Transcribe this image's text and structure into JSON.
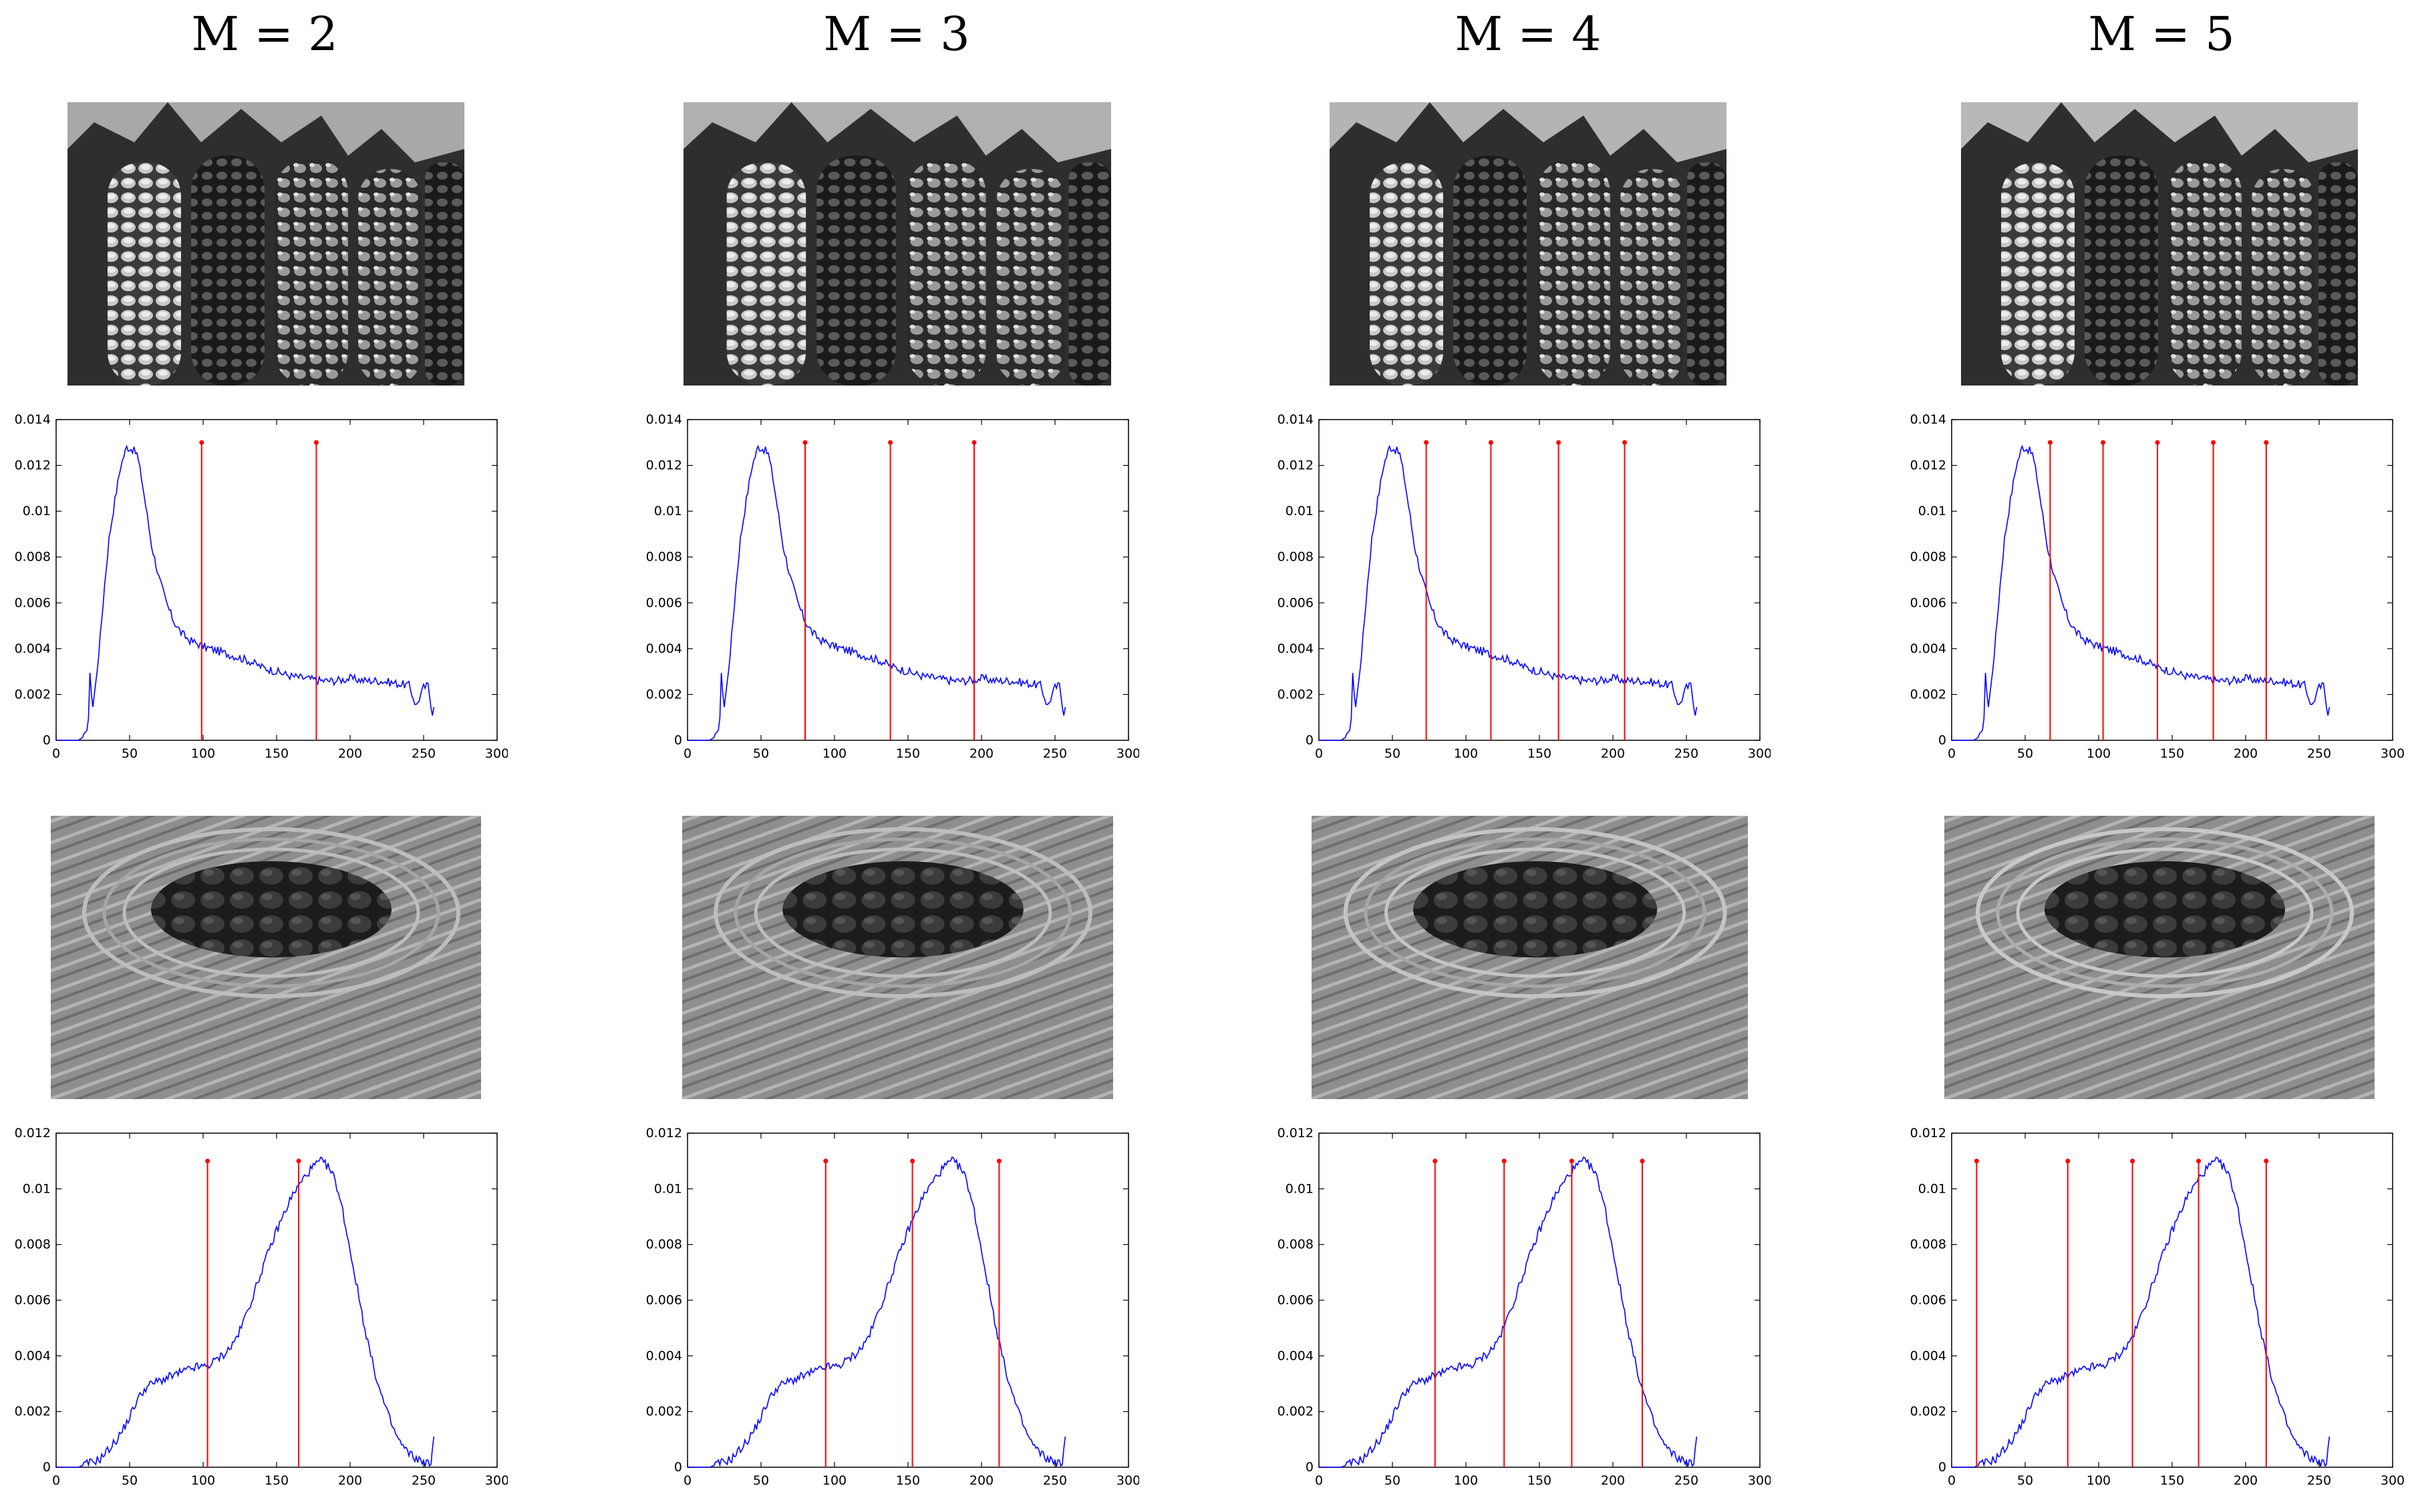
{
  "titles": [
    "M = 2",
    "M = 3",
    "M = 4",
    "M = 5"
  ],
  "images": {
    "row1": "corn-cobs-quantized",
    "row2": "zen-garden-quantized"
  },
  "colors": {
    "histogram": "#0000ff",
    "thresholds": "#ff0000",
    "axes": "#000000"
  },
  "chart_data": [
    {
      "type": "line",
      "title": "M = 2",
      "histogram": "corn",
      "xlim": [
        0,
        300
      ],
      "ylim": [
        0,
        0.014
      ],
      "xticks": [
        0,
        50,
        100,
        150,
        200,
        250,
        300
      ],
      "yticks": [
        0,
        0.002,
        0.004,
        0.006,
        0.008,
        0.01,
        0.012,
        0.014
      ],
      "ytick_labels": [
        "0",
        "0.002",
        "0.004",
        "0.006",
        "0.008",
        "0.01",
        "0.012",
        "0.014"
      ],
      "thresholds": [
        99,
        177
      ],
      "threshold_height": 0.013
    },
    {
      "type": "line",
      "title": "M = 3",
      "histogram": "corn",
      "xlim": [
        0,
        300
      ],
      "ylim": [
        0,
        0.014
      ],
      "xticks": [
        0,
        50,
        100,
        150,
        200,
        250,
        300
      ],
      "yticks": [
        0,
        0.002,
        0.004,
        0.006,
        0.008,
        0.01,
        0.012,
        0.014
      ],
      "ytick_labels": [
        "0",
        "0.002",
        "0.004",
        "0.006",
        "0.008",
        "0.01",
        "0.012",
        "0.014"
      ],
      "thresholds": [
        80,
        138,
        195
      ],
      "threshold_height": 0.013
    },
    {
      "type": "line",
      "title": "M = 4",
      "histogram": "corn",
      "xlim": [
        0,
        300
      ],
      "ylim": [
        0,
        0.014
      ],
      "xticks": [
        0,
        50,
        100,
        150,
        200,
        250,
        300
      ],
      "yticks": [
        0,
        0.002,
        0.004,
        0.006,
        0.008,
        0.01,
        0.012,
        0.014
      ],
      "ytick_labels": [
        "0",
        "0.002",
        "0.004",
        "0.006",
        "0.008",
        "0.01",
        "0.012",
        "0.014"
      ],
      "thresholds": [
        73,
        117,
        163,
        208
      ],
      "threshold_height": 0.013
    },
    {
      "type": "line",
      "title": "M = 5",
      "histogram": "corn",
      "xlim": [
        0,
        300
      ],
      "ylim": [
        0,
        0.014
      ],
      "xticks": [
        0,
        50,
        100,
        150,
        200,
        250,
        300
      ],
      "yticks": [
        0,
        0.002,
        0.004,
        0.006,
        0.008,
        0.01,
        0.012,
        0.014
      ],
      "ytick_labels": [
        "0",
        "0.002",
        "0.004",
        "0.006",
        "0.008",
        "0.01",
        "0.012",
        "0.014"
      ],
      "thresholds": [
        67,
        103,
        140,
        178,
        214
      ],
      "threshold_height": 0.013
    },
    {
      "type": "line",
      "title": "M = 2",
      "histogram": "garden",
      "xlim": [
        0,
        300
      ],
      "ylim": [
        0,
        0.012
      ],
      "xticks": [
        0,
        50,
        100,
        150,
        200,
        250,
        300
      ],
      "yticks": [
        0,
        0.002,
        0.004,
        0.006,
        0.008,
        0.01,
        0.012
      ],
      "ytick_labels": [
        "0",
        "0.002",
        "0.004",
        "0.006",
        "0.008",
        "0.01",
        "0.012"
      ],
      "thresholds": [
        103,
        165
      ],
      "threshold_height": 0.011
    },
    {
      "type": "line",
      "title": "M = 3",
      "histogram": "garden",
      "xlim": [
        0,
        300
      ],
      "ylim": [
        0,
        0.012
      ],
      "xticks": [
        0,
        50,
        100,
        150,
        200,
        250,
        300
      ],
      "yticks": [
        0,
        0.002,
        0.004,
        0.006,
        0.008,
        0.01,
        0.012
      ],
      "ytick_labels": [
        "0",
        "0.002",
        "0.004",
        "0.006",
        "0.008",
        "0.01",
        "0.012"
      ],
      "thresholds": [
        94,
        153,
        212
      ],
      "threshold_height": 0.011
    },
    {
      "type": "line",
      "title": "M = 4",
      "histogram": "garden",
      "xlim": [
        0,
        300
      ],
      "ylim": [
        0,
        0.012
      ],
      "xticks": [
        0,
        50,
        100,
        150,
        200,
        250,
        300
      ],
      "yticks": [
        0,
        0.002,
        0.004,
        0.006,
        0.008,
        0.01,
        0.012
      ],
      "ytick_labels": [
        "0",
        "0.002",
        "0.004",
        "0.006",
        "0.008",
        "0.01",
        "0.012"
      ],
      "thresholds": [
        79,
        126,
        172,
        220
      ],
      "threshold_height": 0.011
    },
    {
      "type": "line",
      "title": "M = 5",
      "histogram": "garden",
      "xlim": [
        0,
        300
      ],
      "ylim": [
        0,
        0.012
      ],
      "xticks": [
        0,
        50,
        100,
        150,
        200,
        250,
        300
      ],
      "yticks": [
        0,
        0.002,
        0.004,
        0.006,
        0.008,
        0.01,
        0.012
      ],
      "ytick_labels": [
        "0",
        "0.002",
        "0.004",
        "0.006",
        "0.008",
        "0.01",
        "0.012"
      ],
      "thresholds": [
        17,
        79,
        123,
        168,
        214
      ],
      "threshold_height": 0.011
    }
  ],
  "histograms": {
    "corn": {
      "x": [
        0,
        15,
        20,
        22,
        23,
        25,
        27,
        30,
        33,
        36,
        40,
        44,
        48,
        52,
        55,
        58,
        62,
        65,
        70,
        75,
        80,
        85,
        90,
        100,
        110,
        120,
        130,
        140,
        150,
        160,
        170,
        180,
        190,
        200,
        210,
        220,
        230,
        240,
        245,
        250,
        253,
        256,
        258
      ],
      "y": [
        0,
        0,
        0.0002,
        0.001,
        0.0028,
        0.0015,
        0.0025,
        0.0045,
        0.0068,
        0.0088,
        0.0105,
        0.012,
        0.0128,
        0.0127,
        0.0125,
        0.0115,
        0.0098,
        0.0085,
        0.0071,
        0.006,
        0.0052,
        0.0047,
        0.0044,
        0.0041,
        0.0039,
        0.0037,
        0.0035,
        0.0032,
        0.003,
        0.0028,
        0.0027,
        0.0026,
        0.0026,
        0.0027,
        0.0026,
        0.0026,
        0.0025,
        0.0024,
        0.0015,
        0.0023,
        0.0024,
        0.0012,
        0.002
      ]
    },
    "garden": {
      "x": [
        0,
        15,
        20,
        25,
        30,
        35,
        40,
        45,
        50,
        55,
        60,
        65,
        70,
        75,
        80,
        85,
        90,
        95,
        100,
        105,
        110,
        115,
        120,
        125,
        130,
        135,
        140,
        145,
        150,
        155,
        160,
        165,
        170,
        175,
        180,
        185,
        190,
        195,
        200,
        205,
        210,
        215,
        220,
        225,
        230,
        235,
        240,
        245,
        250,
        255,
        257
      ],
      "y": [
        0,
        0,
        0.0001,
        0.0002,
        0.0003,
        0.0006,
        0.0009,
        0.0013,
        0.0018,
        0.0024,
        0.0028,
        0.003,
        0.0031,
        0.0032,
        0.0033,
        0.0034,
        0.0035,
        0.0036,
        0.0036,
        0.0037,
        0.0039,
        0.0041,
        0.0044,
        0.0049,
        0.0056,
        0.0063,
        0.0071,
        0.0078,
        0.0085,
        0.0091,
        0.0097,
        0.0101,
        0.0105,
        0.0108,
        0.011,
        0.0108,
        0.0103,
        0.0092,
        0.0078,
        0.0064,
        0.005,
        0.0038,
        0.0028,
        0.002,
        0.0013,
        0.0008,
        0.0005,
        0.0003,
        0.0002,
        0.0001,
        0.001
      ]
    }
  }
}
